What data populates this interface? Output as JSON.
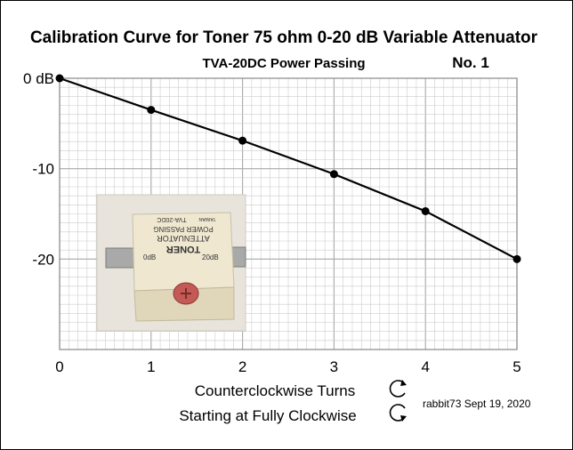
{
  "chart_data": {
    "type": "line",
    "title": "Calibration Curve for Toner 75 ohm 0-20 dB Variable Attenuator",
    "subtitle": "TVA-20DC  Power Passing",
    "unit_number": "No. 1",
    "x": [
      0,
      1,
      2,
      3,
      4,
      5
    ],
    "series": [
      {
        "values": [
          0,
          -3.5,
          -6.9,
          -10.6,
          -14.7,
          -20.0
        ]
      }
    ],
    "x_tick_labels": [
      "0",
      "1",
      "2",
      "3",
      "4",
      "5"
    ],
    "y_tick_labels": [
      "0 dB",
      "-10",
      "-20"
    ],
    "y_tick_values": [
      0,
      -10,
      -20
    ],
    "xlabel_line1": "Counterclockwise Turns",
    "xlabel_line2": "Starting at Fully Clockwise",
    "xlim": [
      0,
      5
    ],
    "ylim": [
      -30,
      0
    ],
    "grid": true,
    "colors": {
      "line": "#000000",
      "grid": "#cccccc",
      "axis": "#888888"
    }
  },
  "photo": {
    "product_label_lines": [
      "TONER",
      "ATTENUATOR",
      "POWER PASSING",
      "TVA-20DC",
      "TAIWAN"
    ],
    "dial_labels": [
      "0dB",
      "20dB"
    ]
  },
  "credit": "rabbit73  Sept 19, 2020",
  "icons": {
    "ccw": "counterclockwise-arrow-icon",
    "cw": "clockwise-arrow-icon"
  }
}
